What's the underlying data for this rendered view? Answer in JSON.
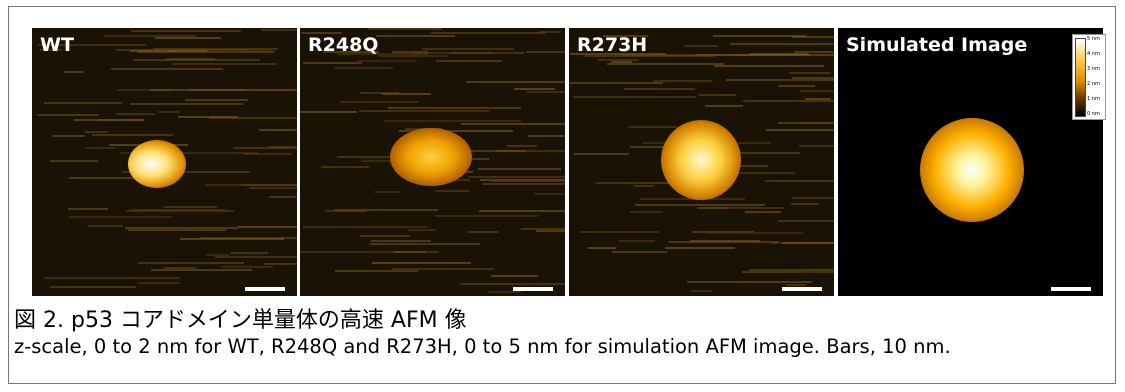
{
  "figure": {
    "panels": [
      {
        "label": "WT"
      },
      {
        "label": "R248Q"
      },
      {
        "label": "R273H"
      },
      {
        "label": "Simulated Image"
      }
    ],
    "colorbar_labels": [
      "5 nm",
      "4 nm",
      "3 nm",
      "2 nm",
      "1 nm",
      "0 nm"
    ],
    "caption_title": "図 2. p53 コアドメイン単量体の高速 AFM 像",
    "caption_body": "z-scale, 0 to 2 nm for WT, R248Q and R273H, 0 to 5 nm for simulation AFM image. Bars, 10 nm."
  }
}
